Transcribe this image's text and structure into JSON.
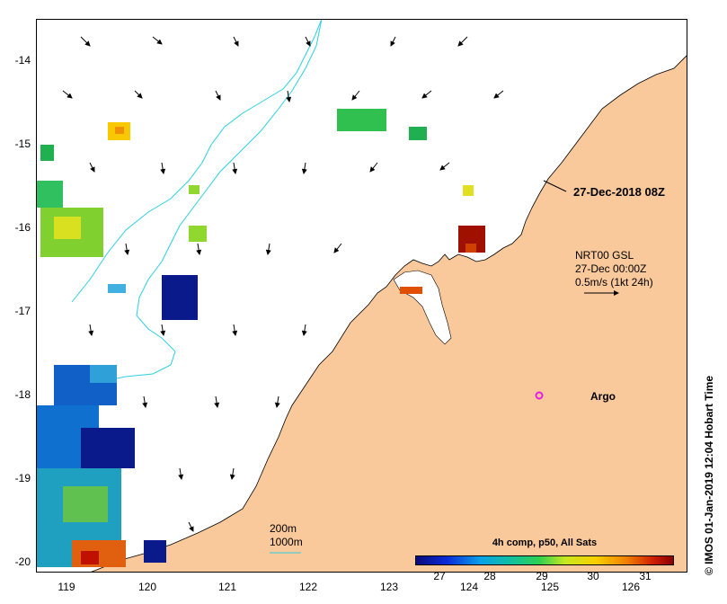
{
  "map": {
    "y_labels": [
      "-14",
      "-15",
      "-16",
      "-17",
      "-18",
      "-19",
      "-20"
    ],
    "x_labels": [
      "119",
      "120",
      "121",
      "122",
      "123",
      "124",
      "125",
      "126"
    ],
    "timestamp": "27-Dec-2018 08Z",
    "current_legend": {
      "line1": "NRT00 GSL",
      "line2": "27-Dec 00:00Z",
      "line3": "0.5m/s (1kt 24h)"
    },
    "argo_label": "Argo",
    "contours": {
      "line1": "200m",
      "line2": "1000m"
    },
    "colorbar": {
      "title": "4h comp, p50, All Sats",
      "ticks": [
        "27",
        "28",
        "29",
        "30",
        "31"
      ]
    },
    "credit": "© IMOS 01-Jan-2019 12:04 Hobart Time",
    "colors": {
      "land": "#F9C89B",
      "contour": "#2ad0e0",
      "argo": "#e020e0"
    }
  }
}
